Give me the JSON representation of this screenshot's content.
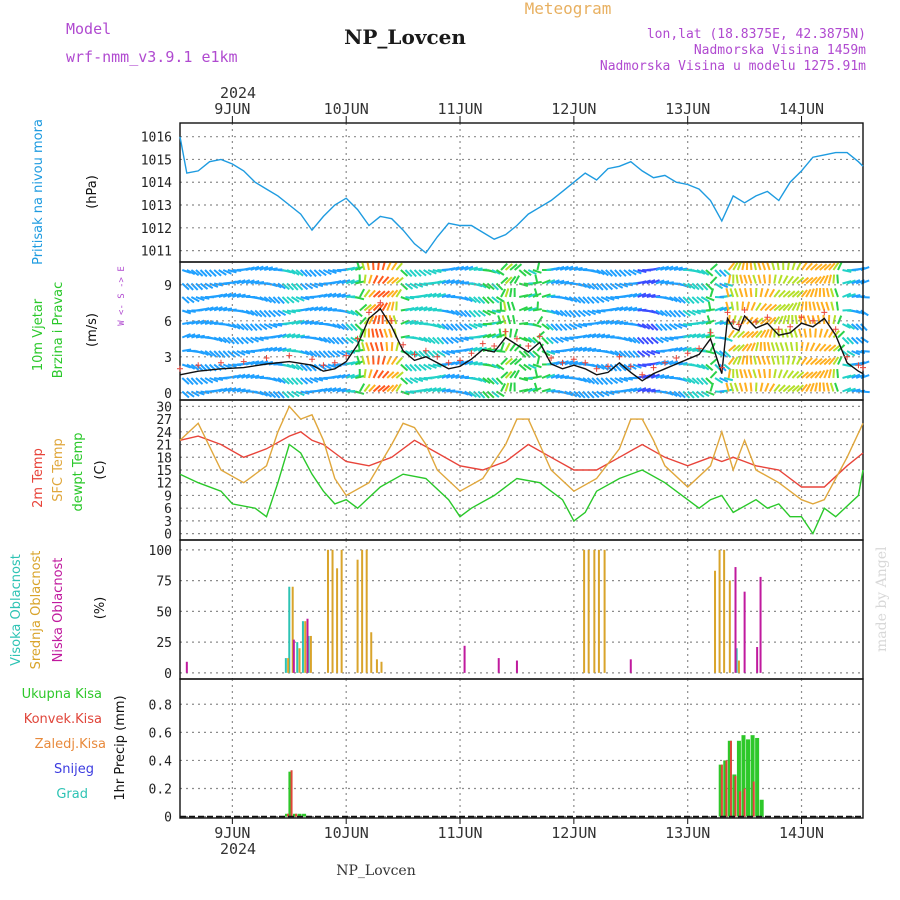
{
  "header": {
    "model_label": "Model",
    "model_name": "wrf-nmm_v3.9.1  e1km",
    "station": "NP_Lovcen",
    "meteogram_label": "Meteogram",
    "lonlat": "lon,lat (18.8375E, 42.3875N)",
    "elevation": "Nadmorska Visina 1459m",
    "model_elevation": "Nadmorska Visina u modelu 1275.91m",
    "year": "2024",
    "footer_station": "NP_Lovcen",
    "watermark": "made by Angel"
  },
  "colors": {
    "pressure": "#1e9be0",
    "temp2m": "#e8443a",
    "sfc": "#e0a73c",
    "dewpt": "#2ac82a",
    "high": "#2ec3b4",
    "mid": "#d9a42b",
    "low": "#c01a9e",
    "total": "#2ec82a",
    "conv": "#e0453a",
    "snow": "#3c3ce0",
    "grid": "#8c8c8c",
    "purple": "#b04ad0"
  },
  "x_axis": {
    "top_labels": [
      "9JUN",
      "10JUN",
      "11JUN",
      "12JUN",
      "13JUN",
      "14JUN"
    ],
    "bottom_labels": [
      "9JUN",
      "10JUN",
      "11JUN",
      "12JUN",
      "13JUN",
      "14JUN"
    ],
    "range_days": [
      8.54,
      14.54
    ]
  },
  "chart_data": [
    {
      "type": "line",
      "panel": "pressure",
      "ylabel": "Pritisak na nivou mora",
      "unit": "(hPa)",
      "yticks": [
        1011,
        1012,
        1013,
        1014,
        1015,
        1016
      ],
      "ylim": [
        1010.5,
        1016.6
      ],
      "series": [
        {
          "key": "pressure",
          "x": [
            8.54,
            8.6,
            8.7,
            8.8,
            8.9,
            9.0,
            9.1,
            9.2,
            9.3,
            9.4,
            9.5,
            9.6,
            9.7,
            9.8,
            9.9,
            10.0,
            10.1,
            10.2,
            10.3,
            10.4,
            10.5,
            10.6,
            10.7,
            10.8,
            10.9,
            11.0,
            11.1,
            11.2,
            11.3,
            11.4,
            11.5,
            11.6,
            11.7,
            11.8,
            11.9,
            12.0,
            12.1,
            12.2,
            12.3,
            12.4,
            12.5,
            12.6,
            12.7,
            12.8,
            12.9,
            13.0,
            13.1,
            13.2,
            13.3,
            13.4,
            13.5,
            13.6,
            13.7,
            13.8,
            13.9,
            14.0,
            14.1,
            14.2,
            14.3,
            14.4,
            14.5,
            14.54
          ],
          "values": [
            1016.0,
            1014.4,
            1014.5,
            1014.9,
            1015.0,
            1014.8,
            1014.5,
            1014.0,
            1013.7,
            1013.4,
            1013.0,
            1012.6,
            1011.9,
            1012.5,
            1013.0,
            1013.3,
            1012.8,
            1012.1,
            1012.5,
            1012.4,
            1011.9,
            1011.3,
            1010.9,
            1011.6,
            1012.2,
            1012.1,
            1012.1,
            1011.8,
            1011.5,
            1011.7,
            1012.1,
            1012.6,
            1012.9,
            1013.2,
            1013.6,
            1014.0,
            1014.4,
            1014.1,
            1014.6,
            1014.7,
            1014.9,
            1014.5,
            1014.2,
            1014.3,
            1014.0,
            1013.9,
            1013.7,
            1013.2,
            1012.3,
            1013.4,
            1013.1,
            1013.4,
            1013.6,
            1013.2,
            1014.0,
            1014.5,
            1015.1,
            1015.2,
            1015.3,
            1015.3,
            1014.9,
            1014.7
          ]
        }
      ]
    },
    {
      "type": "line",
      "panel": "wind",
      "ylabel": [
        "10m Vjetar",
        "Brzina i Pravac"
      ],
      "unit": "(m/s)",
      "compass": "W <- S -> E",
      "yticks": [
        0,
        3,
        6,
        9
      ],
      "ylim": [
        -0.6,
        10.9
      ],
      "series": [
        {
          "key": "speed",
          "x": [
            8.54,
            8.7,
            8.9,
            9.1,
            9.3,
            9.5,
            9.7,
            9.8,
            9.9,
            10.0,
            10.1,
            10.2,
            10.3,
            10.4,
            10.5,
            10.6,
            10.7,
            10.8,
            10.9,
            11.0,
            11.1,
            11.2,
            11.3,
            11.4,
            11.5,
            11.6,
            11.7,
            11.8,
            11.9,
            12.0,
            12.1,
            12.2,
            12.3,
            12.4,
            12.5,
            12.6,
            12.7,
            12.8,
            12.9,
            13.0,
            13.1,
            13.2,
            13.3,
            13.35,
            13.4,
            13.45,
            13.5,
            13.6,
            13.7,
            13.8,
            13.9,
            14.0,
            14.1,
            14.2,
            14.3,
            14.4,
            14.5,
            14.54
          ],
          "values": [
            1.5,
            1.8,
            2.0,
            2.1,
            2.4,
            2.6,
            2.3,
            1.8,
            2.0,
            2.6,
            4.0,
            6.2,
            7.0,
            5.5,
            3.5,
            2.7,
            3.0,
            2.5,
            2.0,
            2.2,
            2.8,
            3.6,
            3.4,
            4.6,
            4.0,
            3.4,
            4.2,
            2.4,
            2.0,
            2.3,
            2.0,
            1.5,
            1.7,
            2.5,
            1.7,
            1.0,
            1.6,
            2.0,
            2.4,
            2.8,
            3.2,
            4.5,
            1.6,
            6.2,
            5.4,
            5.2,
            6.4,
            5.4,
            5.8,
            4.8,
            5.0,
            5.8,
            5.5,
            6.2,
            4.8,
            2.5,
            1.8,
            1.6
          ]
        }
      ]
    },
    {
      "type": "line",
      "panel": "temperature",
      "ylabel": [
        "2m Temp",
        "SFC Temp",
        "dewpt Temp"
      ],
      "unit": "(C)",
      "yticks": [
        0,
        3,
        6,
        9,
        12,
        15,
        18,
        21,
        24,
        27,
        30
      ],
      "ylim": [
        -1.5,
        31.5
      ],
      "series": [
        {
          "key": "temp2m",
          "x": [
            8.54,
            8.7,
            8.9,
            9.1,
            9.3,
            9.5,
            9.6,
            9.7,
            9.8,
            9.9,
            10.0,
            10.2,
            10.4,
            10.6,
            10.8,
            11.0,
            11.2,
            11.4,
            11.6,
            11.8,
            12.0,
            12.2,
            12.4,
            12.6,
            12.8,
            13.0,
            13.2,
            13.3,
            13.4,
            13.5,
            13.6,
            13.8,
            14.0,
            14.2,
            14.4,
            14.54
          ],
          "values": [
            22,
            23,
            21,
            18,
            20,
            23,
            24,
            22,
            21,
            19,
            17,
            16,
            18,
            22,
            19,
            16,
            15,
            17,
            21,
            18,
            15,
            15,
            18,
            21,
            18,
            16,
            18,
            17,
            18,
            17,
            16,
            15,
            11,
            11,
            16,
            19
          ]
        },
        {
          "key": "sfc",
          "x": [
            8.54,
            8.7,
            8.9,
            9.1,
            9.3,
            9.4,
            9.5,
            9.6,
            9.7,
            9.8,
            9.9,
            10.0,
            10.2,
            10.4,
            10.5,
            10.6,
            10.7,
            10.8,
            11.0,
            11.2,
            11.4,
            11.5,
            11.6,
            11.7,
            11.8,
            12.0,
            12.2,
            12.4,
            12.5,
            12.6,
            12.7,
            12.8,
            13.0,
            13.2,
            13.3,
            13.4,
            13.5,
            13.6,
            13.8,
            14.0,
            14.1,
            14.2,
            14.4,
            14.54
          ],
          "values": [
            22,
            26,
            15,
            12,
            16,
            24,
            30,
            27,
            28,
            22,
            13,
            9,
            12,
            21,
            26,
            25,
            21,
            15,
            10,
            13,
            21,
            27,
            27,
            21,
            15,
            10,
            13,
            20,
            27,
            27,
            22,
            16,
            11,
            16,
            24,
            15,
            22,
            15,
            12,
            8,
            7,
            8,
            18,
            26
          ]
        },
        {
          "key": "dewpt",
          "x": [
            8.54,
            8.7,
            8.9,
            9.0,
            9.2,
            9.3,
            9.4,
            9.5,
            9.6,
            9.7,
            9.8,
            9.9,
            10.0,
            10.1,
            10.3,
            10.5,
            10.7,
            10.9,
            11.0,
            11.1,
            11.3,
            11.5,
            11.7,
            11.9,
            12.0,
            12.1,
            12.2,
            12.4,
            12.6,
            12.8,
            13.0,
            13.1,
            13.2,
            13.3,
            13.4,
            13.6,
            13.7,
            13.8,
            13.9,
            14.0,
            14.1,
            14.2,
            14.3,
            14.5,
            14.54
          ],
          "values": [
            14,
            12,
            10,
            7,
            6,
            4,
            12,
            21,
            19,
            14,
            10,
            7,
            8,
            6,
            11,
            14,
            13,
            8,
            4,
            6,
            9,
            13,
            12,
            8,
            3,
            5,
            10,
            13,
            15,
            12,
            8,
            6,
            8,
            9,
            5,
            8,
            6,
            7,
            4,
            4,
            0,
            6,
            4,
            9,
            15
          ]
        }
      ]
    },
    {
      "type": "bar",
      "panel": "cloud",
      "ylabel": [
        "Visoka Oblacnost",
        "Srednja Oblacnost",
        "Niska Oblacnost"
      ],
      "unit": "(%)",
      "yticks": [
        0,
        25,
        50,
        75,
        100
      ],
      "ylim": [
        -5,
        108
      ],
      "series": [
        {
          "key": "high",
          "x": [
            9.47,
            9.5,
            9.57,
            9.62,
            9.67,
            13.43
          ],
          "values": [
            12,
            70,
            25,
            42,
            30,
            20
          ]
        },
        {
          "key": "mid",
          "x": [
            9.49,
            9.53,
            9.59,
            9.64,
            9.69,
            9.84,
            9.88,
            9.92,
            9.96,
            10.1,
            10.14,
            10.18,
            10.22,
            10.27,
            10.31,
            12.09,
            12.13,
            12.18,
            12.22,
            12.27,
            13.24,
            13.28,
            13.32,
            13.37,
            13.45
          ],
          "values": [
            12,
            70,
            20,
            42,
            30,
            100,
            100,
            85,
            100,
            92,
            100,
            100,
            33,
            11,
            9,
            100,
            100,
            100,
            100,
            100,
            83,
            100,
            100,
            75,
            10
          ]
        },
        {
          "key": "low",
          "x": [
            8.6,
            9.54,
            9.66,
            11.04,
            11.34,
            11.5,
            12.5,
            13.42,
            13.5,
            13.61,
            13.64
          ],
          "values": [
            9,
            27,
            44,
            22,
            12,
            10,
            11,
            86,
            66,
            21,
            78
          ]
        }
      ]
    },
    {
      "type": "bar",
      "panel": "precip",
      "ylabel": "1hr Precip (mm)",
      "legend": [
        "Ukupna Kisa",
        "Konvek.Kisa",
        "Zaledj.Kisa",
        "Snijeg",
        "Grad"
      ],
      "yticks": [
        0,
        0.2,
        0.4,
        0.6,
        0.8
      ],
      "ylim": [
        -0.01,
        0.98
      ],
      "series": [
        {
          "key": "total",
          "x": [
            9.48,
            9.51,
            9.55,
            9.59,
            9.63,
            13.29,
            13.33,
            13.37,
            13.41,
            13.45,
            13.49,
            13.53,
            13.57,
            13.61,
            13.65
          ],
          "values": [
            0.02,
            0.32,
            0.02,
            0.02,
            0.02,
            0.37,
            0.4,
            0.54,
            0.3,
            0.54,
            0.58,
            0.55,
            0.58,
            0.56,
            0.12
          ]
        },
        {
          "key": "conv",
          "x": [
            9.49,
            9.52,
            9.56,
            13.3,
            13.34,
            13.38,
            13.42,
            13.46,
            13.5,
            13.58
          ],
          "values": [
            0.02,
            0.33,
            0.02,
            0.37,
            0.4,
            0.54,
            0.29,
            0.18,
            0.2,
            0.25
          ]
        }
      ]
    }
  ]
}
